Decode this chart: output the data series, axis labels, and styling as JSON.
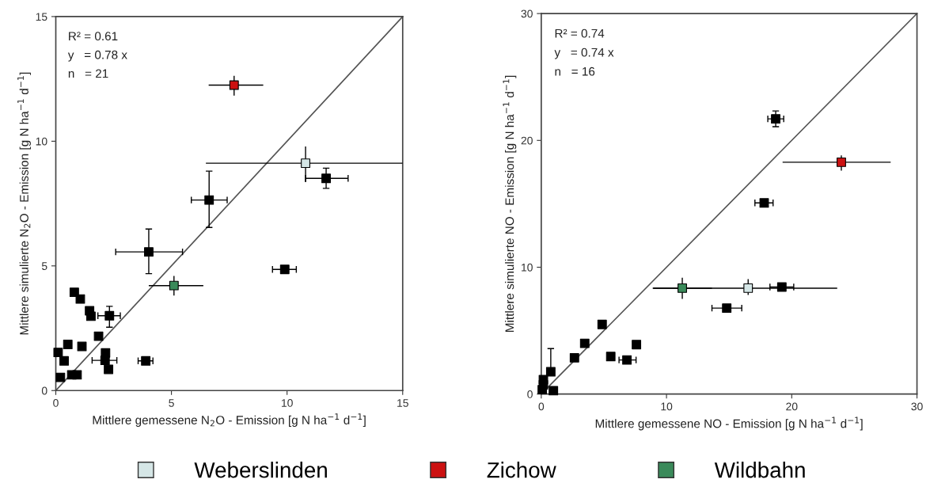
{
  "chart_data": [
    {
      "type": "scatter",
      "xlabel": "Mittlere gemessene N$_{2}$O - Emission [g N ha$^{−1}$ d$^{−1}$]",
      "ylabel": "Mittlere simulierte N$_{2}$O - Emission [g N ha$^{−1}$ d$^{−1}$]",
      "annotations": [
        "R² = 0.61",
        "y   = 0.78 x",
        "n   = 21"
      ],
      "xlim": [
        0,
        15
      ],
      "ylim": [
        0,
        15
      ],
      "xticks": [
        0,
        5,
        10,
        15
      ],
      "yticks": [
        0,
        5,
        10,
        15
      ],
      "grid": false,
      "legend": "bottom",
      "marker": "square",
      "series": [
        {
          "type": "line",
          "marker": "none",
          "color": "#555555",
          "x": [
            0,
            15
          ],
          "values": [
            0,
            15
          ]
        },
        {
          "color": "#000000",
          "x": [
            6.63,
            4.02,
            11.69,
            9.9,
            0.8,
            1.06,
            1.46,
            1.52,
            2.32,
            1.85,
            0.52,
            1.13,
            0.1,
            2.15,
            0.36,
            2.13,
            3.89,
            2.28,
            0.2,
            0.69,
            0.92
          ],
          "values": [
            7.64,
            5.56,
            8.51,
            4.86,
            3.94,
            3.67,
            3.2,
            2.98,
            3.0,
            2.18,
            1.85,
            1.77,
            1.53,
            1.51,
            1.19,
            1.21,
            1.19,
            0.85,
            0.53,
            0.63,
            0.63
          ],
          "xerrors": [
            [
              5.86,
              7.41
            ],
            [
              2.59,
              5.48
            ],
            [
              10.8,
              12.64
            ],
            [
              9.37,
              10.4
            ],
            null,
            null,
            null,
            null,
            [
              1.82,
              2.79
            ],
            null,
            null,
            null,
            null,
            null,
            null,
            [
              1.57,
              2.64
            ],
            [
              3.56,
              4.2
            ],
            null,
            null,
            null,
            null
          ],
          "errors": [
            [
              6.54,
              8.8
            ],
            [
              4.69,
              6.48
            ],
            [
              8.11,
              8.92
            ],
            null,
            null,
            null,
            null,
            null,
            [
              2.54,
              3.38
            ],
            null,
            null,
            null,
            null,
            null,
            null,
            null,
            null,
            null,
            null,
            null,
            null
          ]
        },
        {
          "name": "Weberslinden",
          "color": "#d5e6e6",
          "x": [
            10.8
          ],
          "values": [
            9.12
          ],
          "xerrors": [
            [
              6.49,
              15
            ]
          ],
          "errors": [
            [
              8.36,
              9.79
            ]
          ]
        },
        {
          "name": "Zichow",
          "color": "#cc1111",
          "x": [
            7.71
          ],
          "values": [
            12.25
          ],
          "xerrors": [
            [
              6.61,
              8.97
            ]
          ],
          "errors": [
            [
              11.83,
              12.62
            ]
          ]
        },
        {
          "name": "Wildbahn",
          "color": "#3a8a5a",
          "x": [
            5.11
          ],
          "values": [
            4.21
          ],
          "xerrors": [
            [
              4.02,
              6.38
            ]
          ],
          "errors": [
            [
              3.81,
              4.6
            ]
          ]
        }
      ]
    },
    {
      "type": "scatter",
      "xlabel": "Mittlere gemessene NO - Emission [g N ha$^{−1}$ d$^{−1}$]",
      "ylabel": "Mittlere simulierte NO - Emission [g N ha$^{−1}$ d$^{−1}$]",
      "annotations": [
        "R² = 0.74",
        "y   = 0.74 x",
        "n   = 16"
      ],
      "xlim": [
        0,
        30
      ],
      "ylim": [
        0,
        30
      ],
      "xticks": [
        0,
        10,
        20,
        30
      ],
      "yticks": [
        0,
        10,
        20,
        30
      ],
      "grid": false,
      "marker": "square",
      "series": [
        {
          "type": "line",
          "marker": "none",
          "color": "#555555",
          "x": [
            0,
            30
          ],
          "values": [
            0,
            30
          ]
        },
        {
          "color": "#000000",
          "x": [
            18.72,
            17.8,
            19.21,
            14.81,
            6.84,
            4.86,
            3.47,
            2.65,
            5.55,
            7.6,
            0.76,
            0.97,
            0.17,
            0.17,
            0.08
          ],
          "values": [
            21.7,
            15.07,
            8.44,
            6.78,
            2.69,
            5.49,
            4.0,
            2.86,
            2.96,
            3.9,
            1.76,
            0.27,
            1.14,
            0.73,
            0.35
          ],
          "xerrors": [
            [
              18.09,
              19.36
            ],
            [
              17.06,
              18.51
            ],
            [
              18.26,
              20.16
            ],
            [
              13.63,
              16.01
            ],
            [
              6.21,
              7.57
            ],
            null,
            null,
            null,
            null,
            null,
            null,
            null,
            null,
            null,
            null
          ],
          "errors": [
            [
              21.08,
              22.32
            ],
            null,
            null,
            null,
            null,
            null,
            null,
            null,
            null,
            null,
            [
              1.76,
              3.59
            ],
            null,
            null,
            null,
            null
          ]
        },
        {
          "color": "#d5e6e6",
          "x": [
            16.52
          ],
          "values": [
            8.35
          ],
          "xerrors": [
            [
              8.9,
              23.63
            ]
          ],
          "errors": [
            [
              7.81,
              9.06
            ]
          ]
        },
        {
          "color": "#cc1111",
          "x": [
            23.96
          ],
          "values": [
            18.28
          ],
          "xerrors": [
            [
              19.27,
              27.9
            ]
          ],
          "errors": [
            [
              17.62,
              18.82
            ]
          ]
        },
        {
          "color": "#3a8a5a",
          "x": [
            11.26
          ],
          "values": [
            8.35
          ],
          "xerrors": [
            [
              8.94,
              13.63
            ]
          ],
          "errors": [
            [
              7.5,
              9.18
            ]
          ]
        }
      ]
    }
  ]
}
